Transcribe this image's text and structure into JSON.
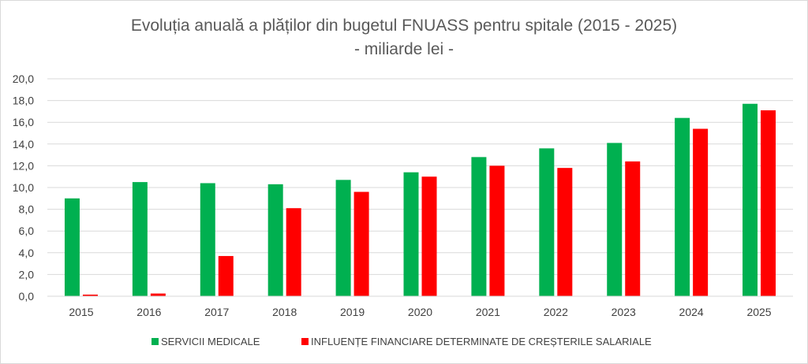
{
  "chart_data": {
    "type": "bar",
    "title": "Evoluția anuală a plăților din bugetul FNUASS pentru spitale (2015 - 2025)",
    "subtitle": "- miliarde lei -",
    "categories": [
      "2015",
      "2016",
      "2017",
      "2018",
      "2019",
      "2020",
      "2021",
      "2022",
      "2023",
      "2024",
      "2025"
    ],
    "series": [
      {
        "name": "SERVICII MEDICALE",
        "color": "#00b050",
        "values": [
          9.0,
          10.5,
          10.4,
          10.3,
          10.7,
          11.4,
          12.8,
          13.6,
          14.1,
          16.4,
          17.7
        ]
      },
      {
        "name": "INFLUENȚE FINANCIARE DETERMINATE DE CREȘTERILE SALARIALE",
        "color": "#ff0000",
        "values": [
          0.15,
          0.25,
          3.7,
          8.1,
          9.6,
          11.0,
          12.0,
          11.8,
          12.4,
          15.4,
          17.1
        ]
      }
    ],
    "ylim": [
      0,
      20
    ],
    "ytick_step": 2,
    "ytick_labels": [
      "0,0",
      "2,0",
      "4,0",
      "6,0",
      "8,0",
      "10,0",
      "12,0",
      "14,0",
      "16,0",
      "18,0",
      "20,0"
    ],
    "xlabel": "",
    "ylabel": "",
    "grid": true,
    "gridline_color": "#d9d9d9",
    "legend_position": "bottom"
  }
}
